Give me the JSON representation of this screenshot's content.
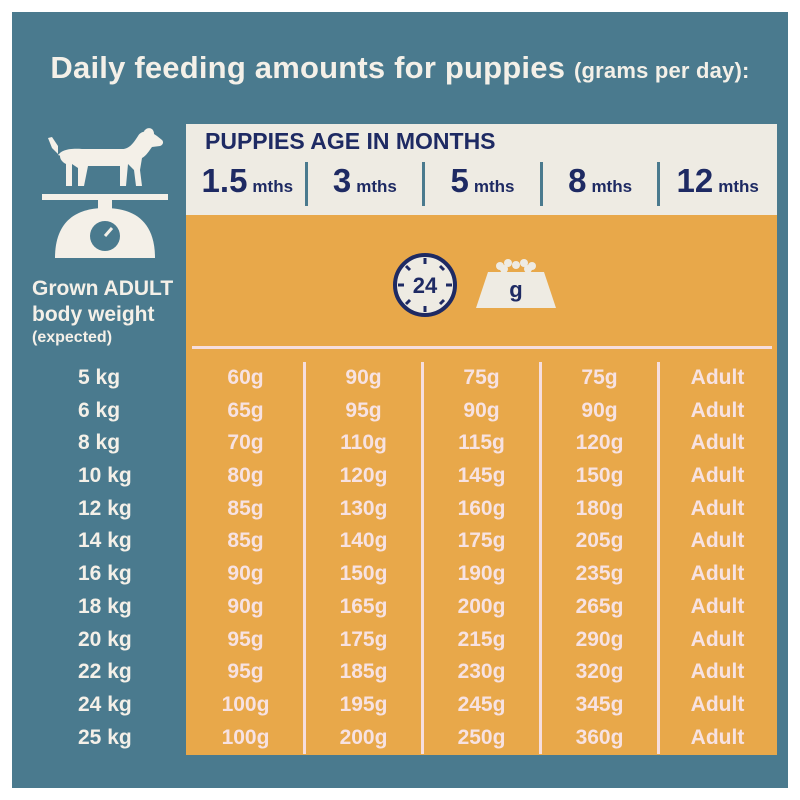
{
  "header": {
    "title": "Daily feeding amounts for puppies",
    "subtitle": "(grams per day):"
  },
  "sidebar": {
    "label": "Grown ADULT body weight",
    "label_note": "(expected)",
    "weights": [
      "5 kg",
      "6 kg",
      "8 kg",
      "10 kg",
      "12 kg",
      "14 kg",
      "16 kg",
      "18 kg",
      "20 kg",
      "22 kg",
      "24 kg",
      "25 kg"
    ]
  },
  "ages": {
    "title": "PUPPIES AGE IN MONTHS",
    "columns": [
      {
        "value": "1.5",
        "unit": "mths"
      },
      {
        "value": "3",
        "unit": "mths"
      },
      {
        "value": "5",
        "unit": "mths"
      },
      {
        "value": "8",
        "unit": "mths"
      },
      {
        "value": "12",
        "unit": "mths"
      }
    ]
  },
  "icons": {
    "clock_text": "24",
    "bowl_text": "g",
    "clock": "clock-24-icon",
    "bowl": "food-bowl-icon",
    "dog": "dog-icon",
    "scale": "scale-icon"
  },
  "table": {
    "columns": [
      [
        "60g",
        "65g",
        "70g",
        "80g",
        "85g",
        "85g",
        "90g",
        "90g",
        "95g",
        "95g",
        "100g",
        "100g"
      ],
      [
        "90g",
        "95g",
        "110g",
        "120g",
        "130g",
        "140g",
        "150g",
        "165g",
        "175g",
        "185g",
        "195g",
        "200g"
      ],
      [
        "75g",
        "90g",
        "115g",
        "145g",
        "160g",
        "175g",
        "190g",
        "200g",
        "215g",
        "230g",
        "245g",
        "250g"
      ],
      [
        "75g",
        "90g",
        "120g",
        "150g",
        "180g",
        "205g",
        "235g",
        "265g",
        "290g",
        "320g",
        "345g",
        "360g"
      ],
      [
        "Adult",
        "Adult",
        "Adult",
        "Adult",
        "Adult",
        "Adult",
        "Adult",
        "Adult",
        "Adult",
        "Adult",
        "Adult",
        "Adult"
      ]
    ]
  },
  "colors": {
    "panel": "#4a7a8e",
    "band": "#eeebe3",
    "orange": "#e8a84a",
    "navy": "#1e2a63",
    "cell_text": "#f7e2e2"
  }
}
